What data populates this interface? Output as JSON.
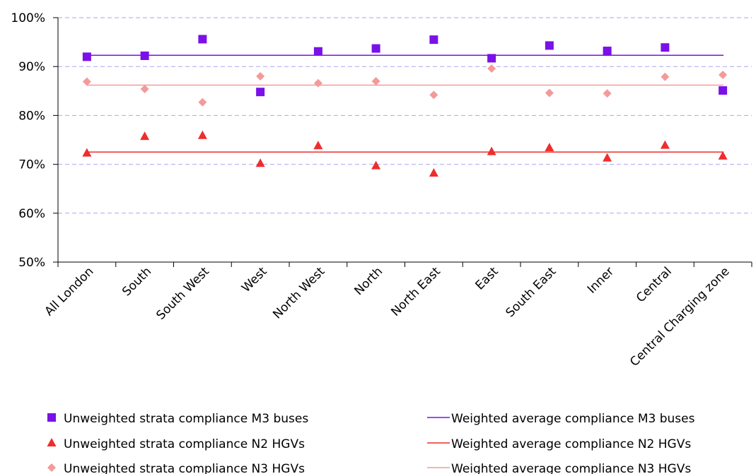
{
  "chart_data": {
    "type": "scatter",
    "categories": [
      "All London",
      "South",
      "South West",
      "West",
      "North West",
      "North",
      "North East",
      "East",
      "South East",
      "Inner",
      "Central",
      "Central Charging zone"
    ],
    "ylim": [
      50,
      100
    ],
    "yticks": [
      "50%",
      "60%",
      "70%",
      "80%",
      "90%",
      "100%"
    ],
    "y_tick_values": [
      50,
      60,
      70,
      80,
      90,
      100
    ],
    "grid": "horizontal dashed",
    "legend_position": "bottom",
    "series": [
      {
        "name": "Unweighted strata compliance M3 buses",
        "kind": "points",
        "marker": "square",
        "color": "#7b10e8",
        "values": [
          92.0,
          92.2,
          95.6,
          84.8,
          93.1,
          93.7,
          95.5,
          91.7,
          94.3,
          93.2,
          93.9,
          85.1
        ]
      },
      {
        "name": "Unweighted strata compliance N2 HGVs",
        "kind": "points",
        "marker": "triangle",
        "color": "#ee2d2d",
        "values": [
          72.3,
          75.7,
          75.9,
          70.2,
          73.8,
          69.7,
          68.2,
          72.6,
          73.4,
          71.3,
          73.9,
          71.7
        ]
      },
      {
        "name": "Unweighted strata compliance N3 HGVs",
        "kind": "points",
        "marker": "diamond",
        "color": "#f39a9a",
        "values": [
          86.9,
          85.4,
          82.7,
          88.0,
          86.6,
          87.0,
          84.2,
          89.6,
          84.6,
          84.5,
          87.9,
          88.3
        ]
      },
      {
        "name": "Weighted average compliance M3 buses",
        "kind": "line",
        "color": "#7b10e8",
        "value": 92.3
      },
      {
        "name": "Weighted average compliance N2 HGVs",
        "kind": "line",
        "color": "#ee2d2d",
        "value": 72.5
      },
      {
        "name": "Weighted average compliance N3 HGVs",
        "kind": "line",
        "color": "#f39a9a",
        "value": 86.2
      }
    ]
  }
}
